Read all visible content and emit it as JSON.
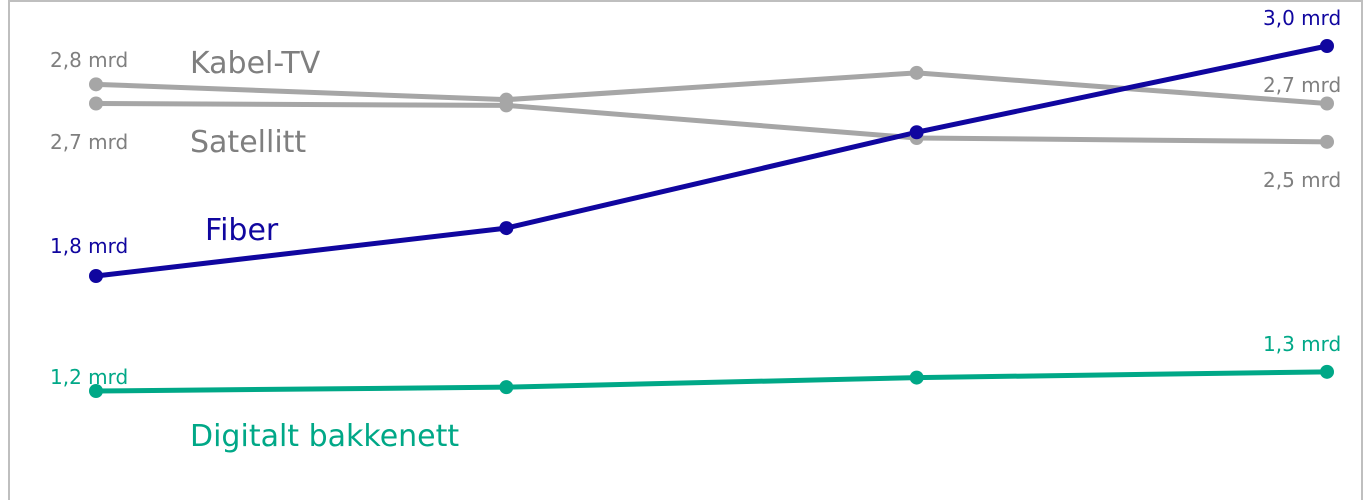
{
  "chart_data": {
    "type": "line",
    "title": "",
    "xlabel": "",
    "ylabel": "",
    "categories": [
      "",
      "",
      "",
      ""
    ],
    "ylim": [
      0,
      3.2
    ],
    "grid": false,
    "legend": "none",
    "series": [
      {
        "name": "Kabel-TV",
        "color": "#a6a6a6",
        "values": [
          2.8,
          2.72,
          2.86,
          2.7
        ],
        "start_label": "2,8 mrd",
        "end_label": "2,7 mrd"
      },
      {
        "name": "Satellitt",
        "color": "#a6a6a6",
        "values": [
          2.7,
          2.69,
          2.52,
          2.5
        ],
        "start_label": "2,7 mrd",
        "end_label": "2,5 mrd"
      },
      {
        "name": "Fiber",
        "color": "#10069f",
        "values": [
          1.8,
          2.05,
          2.55,
          3.0
        ],
        "start_label": "1,8 mrd",
        "end_label": "3,0 mrd"
      },
      {
        "name": "Digitalt bakkenett",
        "color": "#00a887",
        "values": [
          1.2,
          1.22,
          1.27,
          1.3
        ],
        "start_label": "1,2 mrd",
        "end_label": "1,3 mrd"
      }
    ]
  }
}
